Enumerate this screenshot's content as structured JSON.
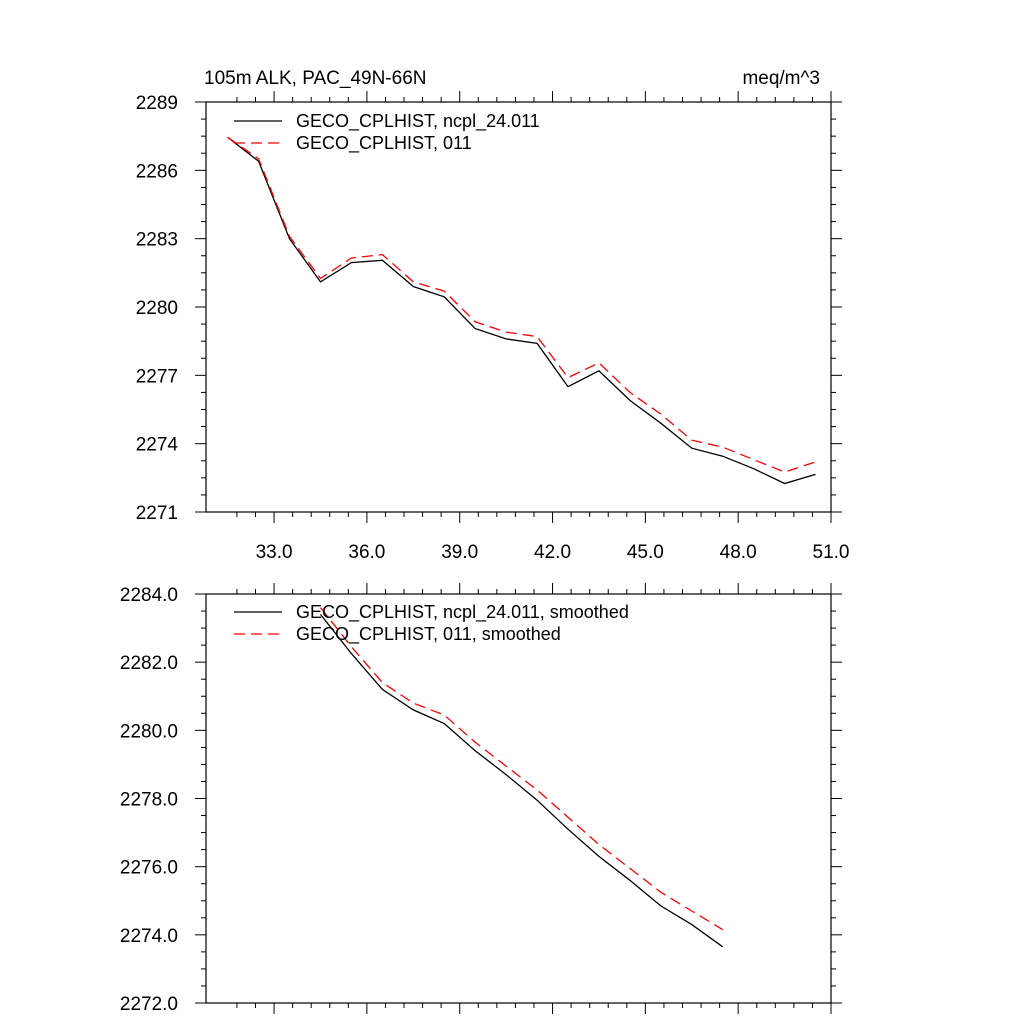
{
  "chart_data": [
    {
      "id": "top",
      "type": "line",
      "title_left": "105m ALK, PAC_49N-66N",
      "title_right": "meq/m^3",
      "xlabel": "",
      "ylabel": "",
      "xlim": [
        30.8,
        51.0
      ],
      "ylim": [
        2271,
        2289
      ],
      "x_ticks": [
        33.0,
        36.0,
        39.0,
        42.0,
        45.0,
        48.0,
        51.0
      ],
      "x_tick_labels": [
        "33.0",
        "36.0",
        "39.0",
        "42.0",
        "45.0",
        "48.0",
        "51.0"
      ],
      "y_ticks": [
        2271,
        2274,
        2277,
        2280,
        2283,
        2286,
        2289
      ],
      "y_tick_labels": [
        "2271",
        "2274",
        "2277",
        "2280",
        "2283",
        "2286",
        "2289"
      ],
      "x": [
        31.5,
        32.5,
        33.5,
        34.5,
        35.5,
        36.5,
        37.5,
        38.5,
        39.5,
        40.5,
        41.5,
        42.5,
        43.5,
        44.5,
        45.5,
        46.5,
        47.5,
        48.5,
        49.5,
        50.5
      ],
      "series": [
        {
          "name": "GECO_CPLHIST, ncpl_24.011",
          "color": "#000000",
          "dash": "solid",
          "values": [
            2287.45,
            2286.4,
            2283.0,
            2281.1,
            2281.95,
            2282.05,
            2280.9,
            2280.45,
            2279.05,
            2278.6,
            2278.4,
            2276.5,
            2277.2,
            2275.9,
            2274.9,
            2273.8,
            2273.45,
            2272.9,
            2272.25,
            2272.65
          ]
        },
        {
          "name": "GECO_CPLHIST, 011",
          "color": "#ff0000",
          "dash": "dashed",
          "values": [
            2287.45,
            2286.5,
            2283.1,
            2281.25,
            2282.15,
            2282.3,
            2281.1,
            2280.7,
            2279.35,
            2278.9,
            2278.7,
            2276.9,
            2277.55,
            2276.25,
            2275.3,
            2274.15,
            2273.85,
            2273.3,
            2272.75,
            2273.2
          ]
        }
      ]
    },
    {
      "id": "bottom",
      "type": "line",
      "xlabel": "",
      "ylabel": "",
      "xlim": [
        30.8,
        51.0
      ],
      "ylim": [
        2272.0,
        2284.0
      ],
      "x_ticks": [
        33.0,
        36.0,
        39.0,
        42.0,
        45.0,
        48.0,
        51.0
      ],
      "y_ticks": [
        2272.0,
        2274.0,
        2276.0,
        2278.0,
        2280.0,
        2282.0,
        2284.0
      ],
      "y_tick_labels": [
        "2272.0",
        "2274.0",
        "2276.0",
        "2278.0",
        "2280.0",
        "2282.0",
        "2284.0"
      ],
      "x": [
        34.5,
        35.5,
        36.5,
        37.5,
        38.5,
        39.5,
        40.5,
        41.5,
        42.5,
        43.5,
        44.5,
        45.5,
        46.5,
        47.5
      ],
      "series": [
        {
          "name": "GECO_CPLHIST, ncpl_24.011, smoothed",
          "color": "#000000",
          "dash": "solid",
          "values": [
            2283.4,
            2282.25,
            2281.2,
            2280.6,
            2280.2,
            2279.4,
            2278.7,
            2277.95,
            2277.1,
            2276.3,
            2275.6,
            2274.85,
            2274.3,
            2273.65
          ]
        },
        {
          "name": "GECO_CPLHIST, 011, smoothed",
          "color": "#ff0000",
          "dash": "dashed",
          "values": [
            2283.6,
            2282.45,
            2281.4,
            2280.8,
            2280.45,
            2279.65,
            2278.95,
            2278.25,
            2277.45,
            2276.65,
            2275.95,
            2275.25,
            2274.7,
            2274.15
          ]
        }
      ]
    }
  ]
}
